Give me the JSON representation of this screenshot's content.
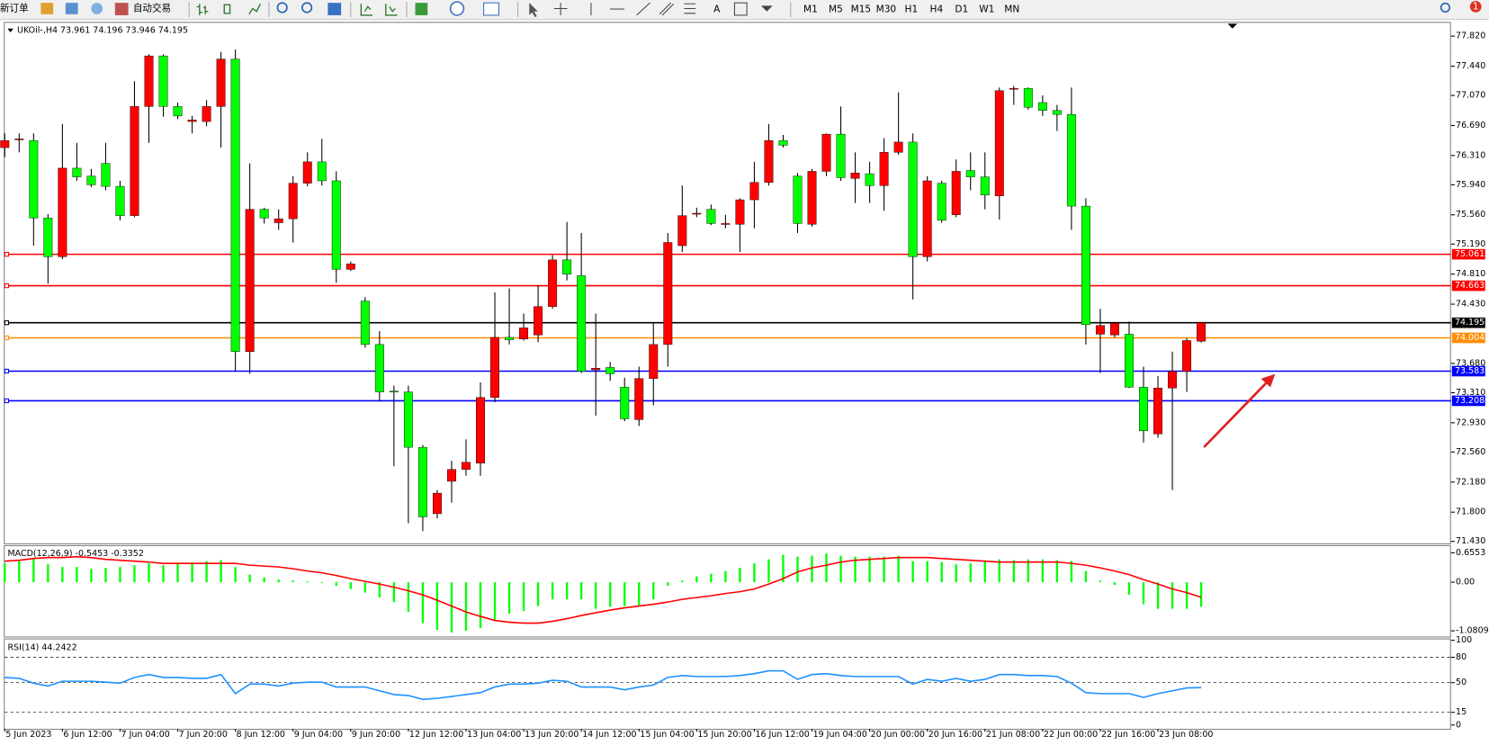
{
  "toolbar": {
    "new_order": "新订单",
    "auto_trading": "自动交易",
    "text_tool": "A",
    "timeframes": [
      "M1",
      "M5",
      "M15",
      "M30",
      "H1",
      "H4",
      "D1",
      "W1",
      "MN"
    ],
    "notification_count": 1
  },
  "chart_data": [
    {
      "type": "candlestick",
      "title": "UKOil-,H4 73.961 74.196 73.946 74.195",
      "up_color": "#ff0000",
      "down_color": "#00ff00",
      "wick_color": "#000000",
      "categories": [
        "5 Jun 2023",
        null,
        null,
        null,
        "6 Jun 12:00",
        null,
        null,
        null,
        "7 Jun 04:00",
        null,
        null,
        null,
        "7 Jun 20:00",
        null,
        null,
        null,
        "8 Jun 12:00",
        null,
        null,
        null,
        "9 Jun 04:00",
        null,
        null,
        null,
        "9 Jun 20:00",
        null,
        null,
        null,
        "12 Jun 12:00",
        null,
        null,
        null,
        "13 Jun 04:00",
        null,
        null,
        null,
        "13 Jun 20:00",
        null,
        null,
        null,
        "14 Jun 12:00",
        null,
        null,
        null,
        "15 Jun 04:00",
        null,
        null,
        null,
        "15 Jun 20:00",
        null,
        null,
        null,
        "16 Jun 12:00",
        null,
        null,
        null,
        "19 Jun 04:00",
        null,
        null,
        null,
        "20 Jun 00:00",
        null,
        null,
        null,
        "20 Jun 16:00",
        null,
        null,
        null,
        "21 Jun 08:00",
        null,
        null,
        null,
        "22 Jun 00:00",
        null,
        null,
        null,
        "22 Jun 16:00",
        null,
        null,
        null,
        "23 Jun 08:00",
        null,
        null,
        null
      ],
      "open": [
        76.41,
        76.51,
        76.5,
        75.52,
        75.03,
        76.15,
        76.05,
        76.21,
        75.92,
        75.55,
        76.93,
        77.57,
        76.93,
        76.74,
        76.74,
        76.93,
        77.53,
        73.83,
        75.63,
        75.46,
        75.51,
        75.96,
        76.23,
        75.99,
        74.87,
        74.47,
        73.92,
        73.33,
        73.32,
        72.62,
        71.78,
        72.19,
        72.34,
        72.42,
        73.25,
        74.01,
        73.99,
        74.04,
        74.4,
        74.99,
        74.79,
        73.6,
        73.63,
        73.38,
        72.97,
        73.49,
        73.92,
        75.17,
        75.57,
        75.63,
        75.44,
        75.44,
        75.75,
        75.97,
        76.5,
        76.05,
        75.44,
        76.11,
        76.58,
        76.02,
        76.08,
        75.93,
        76.35,
        76.48,
        75.03,
        75.96,
        75.56,
        76.12,
        76.04,
        75.8,
        77.15,
        77.16,
        76.98,
        76.88,
        76.83,
        75.67,
        74.05,
        74.04,
        74.05,
        73.38,
        72.79,
        73.37,
        73.58,
        73.961
      ],
      "high": [
        76.59,
        76.59,
        76.59,
        75.57,
        76.71,
        76.47,
        76.14,
        76.47,
        75.99,
        77.25,
        77.59,
        77.59,
        76.98,
        76.81,
        77.01,
        77.62,
        77.65,
        76.21,
        75.65,
        75.63,
        76.05,
        76.35,
        76.52,
        76.11,
        74.97,
        74.52,
        74.09,
        73.4,
        73.4,
        72.65,
        72.08,
        72.45,
        72.72,
        73.44,
        74.58,
        74.63,
        74.31,
        74.67,
        75.05,
        75.47,
        75.33,
        74.31,
        73.7,
        73.5,
        73.64,
        74.19,
        75.33,
        75.93,
        75.65,
        75.69,
        75.56,
        75.77,
        76.23,
        76.71,
        76.57,
        76.09,
        76.14,
        76.59,
        76.93,
        76.35,
        76.23,
        76.53,
        77.11,
        76.59,
        76.05,
        75.99,
        76.26,
        76.35,
        76.35,
        77.17,
        77.19,
        77.17,
        77.07,
        76.95,
        77.17,
        75.77,
        74.37,
        74.19,
        74.21,
        73.64,
        73.52,
        73.83,
        74.0,
        74.196
      ],
      "low": [
        76.29,
        76.35,
        75.17,
        74.69,
        75.0,
        75.99,
        75.91,
        75.87,
        75.49,
        75.53,
        76.47,
        76.8,
        76.77,
        76.59,
        76.68,
        76.41,
        73.58,
        73.55,
        75.45,
        75.37,
        75.21,
        75.92,
        75.93,
        74.7,
        74.85,
        73.88,
        73.2,
        72.38,
        71.66,
        71.56,
        71.72,
        71.92,
        72.26,
        72.26,
        73.19,
        73.92,
        73.97,
        73.95,
        74.37,
        74.73,
        73.56,
        73.02,
        73.46,
        72.95,
        72.89,
        73.15,
        73.64,
        75.09,
        75.53,
        75.43,
        75.39,
        75.09,
        75.39,
        75.93,
        76.41,
        75.33,
        75.41,
        76.05,
        75.99,
        75.71,
        75.71,
        75.61,
        76.32,
        74.49,
        74.97,
        75.46,
        75.53,
        75.87,
        75.63,
        75.5,
        76.95,
        76.89,
        76.81,
        76.62,
        75.37,
        73.92,
        73.56,
        74.01,
        73.37,
        72.68,
        72.74,
        72.08,
        73.32,
        73.946
      ],
      "close": [
        76.5,
        76.52,
        75.52,
        75.03,
        76.15,
        76.04,
        75.94,
        75.92,
        75.55,
        76.93,
        77.57,
        76.93,
        76.81,
        76.76,
        76.93,
        77.53,
        73.83,
        75.63,
        75.52,
        75.51,
        75.96,
        76.23,
        75.99,
        74.87,
        74.94,
        73.92,
        73.32,
        73.32,
        72.62,
        71.74,
        72.04,
        72.34,
        72.43,
        73.25,
        74.01,
        73.98,
        74.13,
        74.4,
        74.99,
        74.81,
        73.58,
        73.62,
        73.55,
        72.98,
        73.49,
        73.92,
        75.21,
        75.55,
        75.58,
        75.45,
        75.45,
        75.75,
        75.97,
        76.5,
        76.44,
        75.45,
        76.11,
        76.58,
        76.03,
        76.09,
        75.93,
        76.35,
        76.48,
        75.03,
        75.99,
        75.49,
        76.11,
        76.04,
        75.81,
        77.13,
        77.16,
        76.92,
        76.88,
        76.83,
        75.67,
        74.17,
        74.16,
        74.19,
        73.38,
        72.83,
        73.37,
        73.58,
        73.97,
        74.195
      ],
      "ylim": [
        71.418,
        77.976
      ],
      "yticks": [
        {
          "value": 77.82,
          "label": "77.820"
        },
        {
          "value": 77.44,
          "label": "77.440"
        },
        {
          "value": 77.07,
          "label": "77.070"
        },
        {
          "value": 76.69,
          "label": "76.690"
        },
        {
          "value": 76.31,
          "label": "76.310"
        },
        {
          "value": 75.94,
          "label": "75.940"
        },
        {
          "value": 75.56,
          "label": "75.560"
        },
        {
          "value": 75.19,
          "label": "75.190"
        },
        {
          "value": 74.81,
          "label": "74.810"
        },
        {
          "value": 74.43,
          "label": "74.430"
        },
        {
          "value": 73.68,
          "label": "73.680"
        },
        {
          "value": 73.31,
          "label": "73.310"
        },
        {
          "value": 72.93,
          "label": "72.930"
        },
        {
          "value": 72.56,
          "label": "72.560"
        },
        {
          "value": 72.18,
          "label": "72.180"
        },
        {
          "value": 71.8,
          "label": "71.800"
        },
        {
          "value": 71.43,
          "label": "71.430"
        }
      ],
      "hlines": [
        {
          "value": 75.061,
          "color": "#ff0000"
        },
        {
          "value": 74.663,
          "color": "#ff0000"
        },
        {
          "value": 74.195,
          "color": "#000000"
        },
        {
          "value": 74.004,
          "color": "#ff8c00"
        },
        {
          "value": 73.583,
          "color": "#0000ff"
        },
        {
          "value": 73.208,
          "color": "#0000ff"
        }
      ]
    },
    {
      "type": "macd",
      "title": "MACD(12,26,9) -0.5453 -0.3352",
      "series": [
        {
          "style": "bar",
          "color": "#00ff00",
          "values": [
            0.42,
            0.47,
            0.53,
            0.4,
            0.34,
            0.34,
            0.3,
            0.32,
            0.34,
            0.38,
            0.42,
            0.38,
            0.42,
            0.42,
            0.47,
            0.49,
            0.34,
            0.17,
            0.11,
            0.06,
            0.04,
            0.02,
            -0.02,
            -0.08,
            -0.15,
            -0.23,
            -0.34,
            -0.44,
            -0.66,
            -0.91,
            -1.06,
            -1.12,
            -1.08,
            -1.02,
            -0.83,
            -0.7,
            -0.64,
            -0.53,
            -0.38,
            -0.38,
            -0.38,
            -0.59,
            -0.55,
            -0.53,
            -0.51,
            -0.38,
            -0.08,
            0.04,
            0.13,
            0.19,
            0.25,
            0.32,
            0.42,
            0.51,
            0.61,
            0.57,
            0.59,
            0.64,
            0.59,
            0.57,
            0.57,
            0.57,
            0.59,
            0.47,
            0.47,
            0.45,
            0.4,
            0.42,
            0.47,
            0.51,
            0.49,
            0.51,
            0.51,
            0.49,
            0.47,
            0.25,
            0.04,
            -0.06,
            -0.28,
            -0.49,
            -0.59,
            -0.59,
            -0.59,
            -0.5453
          ]
        },
        {
          "style": "line",
          "color": "#ff0000",
          "values": [
            0.47,
            0.49,
            0.53,
            0.55,
            0.55,
            0.57,
            0.55,
            0.51,
            0.49,
            0.47,
            0.45,
            0.42,
            0.42,
            0.42,
            0.42,
            0.42,
            0.42,
            0.38,
            0.36,
            0.34,
            0.3,
            0.25,
            0.21,
            0.15,
            0.08,
            0.02,
            -0.04,
            -0.11,
            -0.19,
            -0.28,
            -0.4,
            -0.53,
            -0.66,
            -0.76,
            -0.85,
            -0.89,
            -0.91,
            -0.91,
            -0.87,
            -0.81,
            -0.74,
            -0.68,
            -0.62,
            -0.57,
            -0.53,
            -0.49,
            -0.44,
            -0.38,
            -0.34,
            -0.3,
            -0.25,
            -0.21,
            -0.15,
            -0.04,
            0.08,
            0.23,
            0.32,
            0.38,
            0.45,
            0.49,
            0.51,
            0.53,
            0.55,
            0.55,
            0.55,
            0.53,
            0.51,
            0.49,
            0.47,
            0.45,
            0.45,
            0.45,
            0.45,
            0.45,
            0.42,
            0.38,
            0.32,
            0.25,
            0.17,
            0.06,
            -0.04,
            -0.15,
            -0.23,
            -0.3352
          ]
        }
      ],
      "ylim": [
        -1.1868,
        0.7824
      ],
      "yticks": [
        0.6553,
        {
          "value": 0,
          "label": "0.00"
        },
        -1.0809
      ]
    },
    {
      "type": "line",
      "title": "RSI(14) 44.2422",
      "color": "#1e90ff",
      "values": [
        56.2,
        55.1,
        49.4,
        46.1,
        51.7,
        51.7,
        51.7,
        50.6,
        49.4,
        56.2,
        59.6,
        56.2,
        56.2,
        55.1,
        55.1,
        59.6,
        37.1,
        48.3,
        48.3,
        46.1,
        49.4,
        50.6,
        50.6,
        44.9,
        44.9,
        44.9,
        40.4,
        36.0,
        34.8,
        30.3,
        31.5,
        33.7,
        36.0,
        38.2,
        44.9,
        48.3,
        48.3,
        49.4,
        52.8,
        51.7,
        44.9,
        44.9,
        44.9,
        41.6,
        44.9,
        47.2,
        56.2,
        58.4,
        57.3,
        57.3,
        57.3,
        58.4,
        60.7,
        64.0,
        64.0,
        53.9,
        59.6,
        60.7,
        58.4,
        57.3,
        57.3,
        57.3,
        57.3,
        48.3,
        53.9,
        51.7,
        55.1,
        51.7,
        53.9,
        59.6,
        59.6,
        58.4,
        58.4,
        57.3,
        49.4,
        38.2,
        37.1,
        37.1,
        37.1,
        32.6,
        37.1,
        40.4,
        43.8,
        44.2422
      ],
      "ylim": [
        0,
        100
      ],
      "yticks": [
        100,
        80,
        50,
        15,
        0
      ],
      "grid": true
    }
  ]
}
